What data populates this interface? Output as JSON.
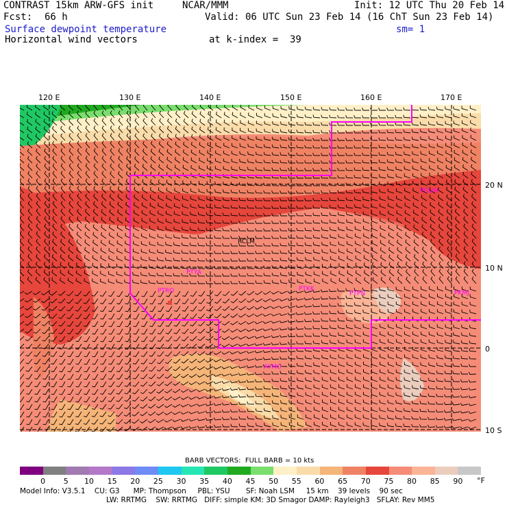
{
  "header": {
    "title": "CONTRAST 15km ARW-GFS init",
    "org": "NCAR/MMM",
    "init": "Init: 12 UTC Thu 20 Feb 14",
    "fcst_label": "Fcst:",
    "fcst_value": "66 h",
    "valid": "Valid: 06 UTC Sun 23 Feb 14 (16 ChT Sun 23 Feb 14)",
    "field1": "Surface dewpoint temperature",
    "smoothing": "sm= 1",
    "field2": "Horizontal wind vectors",
    "kindex": "at k-index =  39"
  },
  "axes": {
    "lon_labels": [
      "120 E",
      "130 E",
      "140 E",
      "150 E",
      "160 E",
      "170 E"
    ],
    "lat_labels": [
      "20 N",
      "10 N",
      "0",
      "10 S"
    ]
  },
  "stations": [
    "RCLM",
    "PGUM",
    "PTYA",
    "PTRO",
    "PTKK",
    "PTPN",
    "PKMJ",
    "AYMO"
  ],
  "legend": {
    "barb_note": "BARB VECTORS:  FULL BARB = 10 kts",
    "ticks": [
      "0",
      "5",
      "10",
      "15",
      "20",
      "25",
      "30",
      "35",
      "40",
      "45",
      "50",
      "55",
      "60",
      "65",
      "70",
      "75",
      "80",
      "85",
      "90"
    ],
    "unit": "°F",
    "colors": [
      "#800080",
      "#808080",
      "#a07ab0",
      "#b478c8",
      "#8c78e6",
      "#6e8cf5",
      "#1ec8f0",
      "#26e6b4",
      "#20c864",
      "#20aa20",
      "#7ade6e",
      "#fff0c8",
      "#fadcaa",
      "#f5b478",
      "#f08264",
      "#e6463c",
      "#f58c78",
      "#fab496",
      "#ebcdbe",
      "#c8c8c8"
    ]
  },
  "footer": {
    "line1": "Model Info: V3.5.1    CU: G3      MP: Thompson     PBL: YSU       SF: Noah LSM     15 km    39 levels    90 sec",
    "line2": "LW: RRTMG    SW: RRTMG   DIFF: simple KM: 3D Smagor DAMP: Rayleigh3   SFLAY: Rev MM5"
  },
  "colors": {
    "title_blue": "#1a1acc",
    "boundary": "#ff00ff",
    "station": "#ff00ff"
  }
}
